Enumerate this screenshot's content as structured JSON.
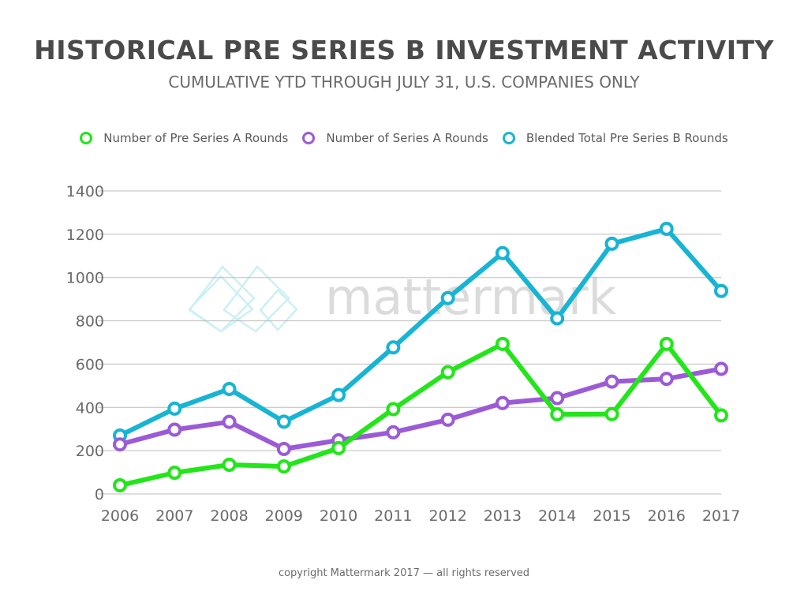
{
  "title": "HISTORICAL PRE SERIES B INVESTMENT ACTIVITY",
  "subtitle": "CUMULATIVE YTD THROUGH JULY 31, U.S. COMPANIES ONLY",
  "watermark": "mattermark",
  "footer": "copyright Mattermark 2017 — all rights reserved",
  "chart_data": {
    "type": "line",
    "categories": [
      "2006",
      "2007",
      "2008",
      "2009",
      "2010",
      "2011",
      "2012",
      "2013",
      "2014",
      "2015",
      "2016",
      "2017"
    ],
    "series": [
      {
        "name": "Number of Pre Series A Rounds",
        "color": "#22e51a",
        "values": [
          40,
          98,
          135,
          127,
          212,
          392,
          563,
          693,
          368,
          369,
          693,
          363
        ]
      },
      {
        "name": "Number of Series A Rounds",
        "color": "#9b5bd6",
        "values": [
          229,
          297,
          333,
          208,
          248,
          285,
          343,
          420,
          443,
          519,
          532,
          578
        ]
      },
      {
        "name": "Blended Total Pre Series B Rounds",
        "color": "#17b4d4",
        "values": [
          270,
          394,
          485,
          334,
          457,
          677,
          905,
          1113,
          811,
          1156,
          1225,
          938
        ]
      }
    ],
    "yticks": [
      "0",
      "200",
      "400",
      "600",
      "800",
      "1000",
      "1200",
      "1400"
    ],
    "ylim": [
      0,
      1400
    ],
    "grid": true,
    "legend_position": "top"
  }
}
